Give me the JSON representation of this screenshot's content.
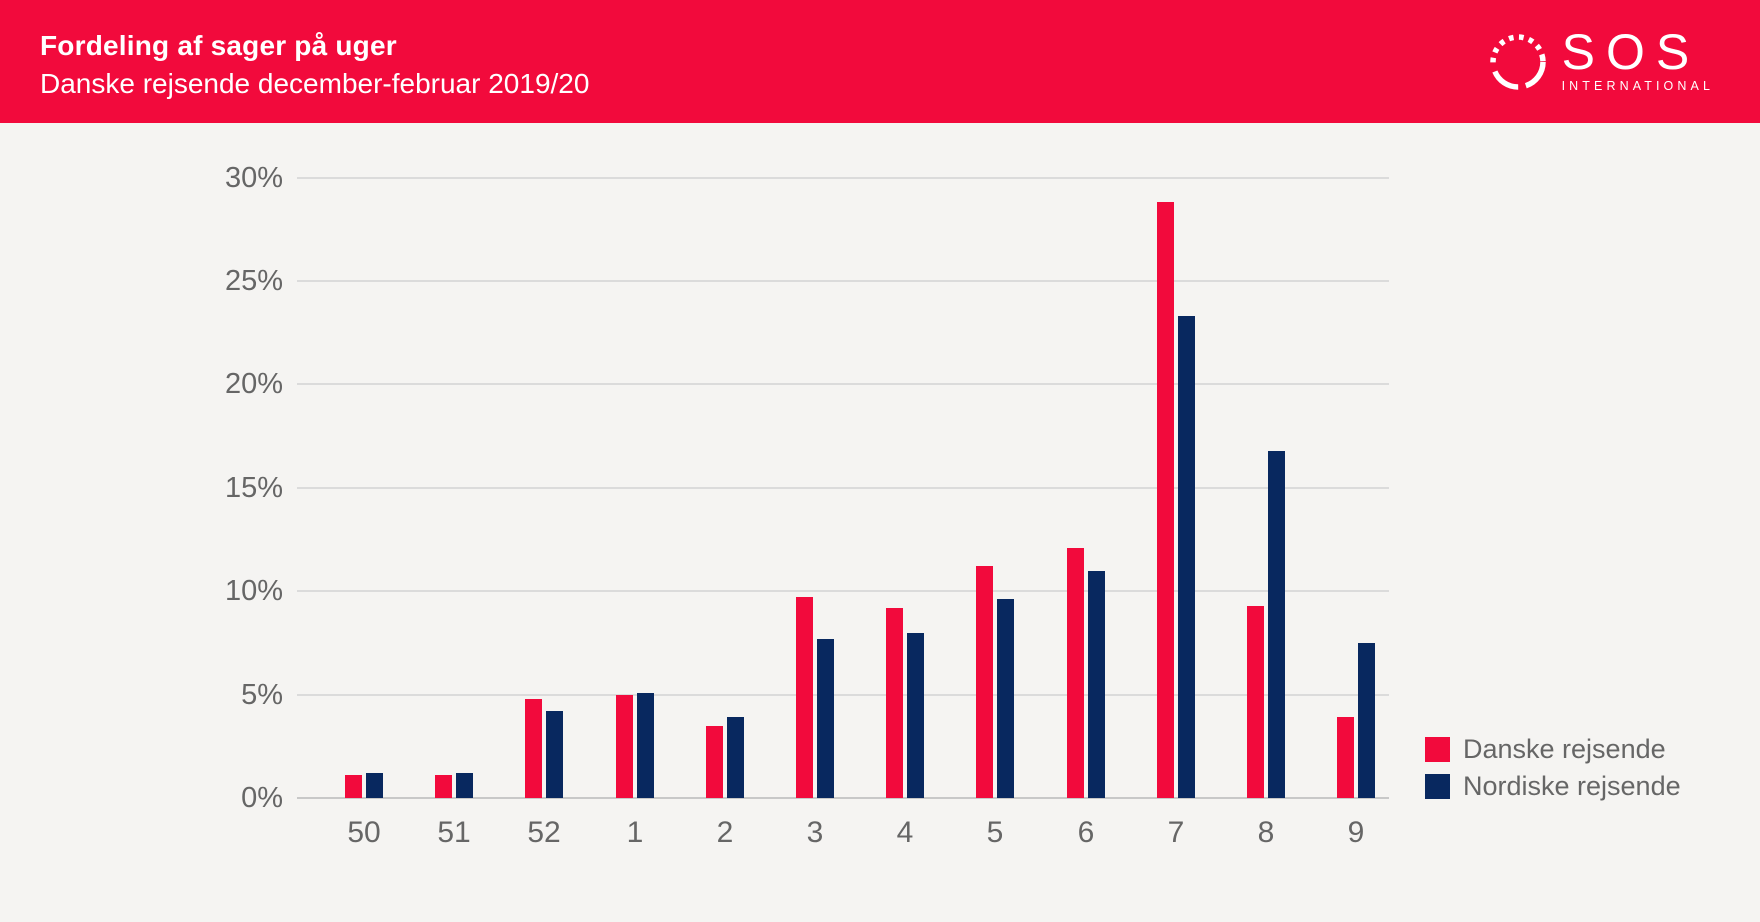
{
  "header": {
    "title": "Fordeling af sager på uger",
    "subtitle": "Danske rejsende december-februar 2019/20"
  },
  "logo": {
    "name": "SOS International",
    "text": "SOS",
    "subtext": "INTERNATIONAL"
  },
  "colors": {
    "accent_red": "#F20A3C",
    "accent_navy": "#08285F",
    "header_background": "#F20A3C",
    "page_background": "#F5F4F2",
    "gridline": "#DBDBDB",
    "axis_line": "#C8C8C8",
    "tick_text": "#666666",
    "legend_text": "#666666",
    "logo_white": "#FFFFFF"
  },
  "chart_data": {
    "type": "bar",
    "title": "Fordeling af sager på uger",
    "subtitle": "Danske rejsende december-februar 2019/20",
    "categories": [
      "50",
      "51",
      "52",
      "1",
      "2",
      "3",
      "4",
      "5",
      "6",
      "7",
      "8",
      "9"
    ],
    "series": [
      {
        "name": "Danske rejsende",
        "color": "#F20A3C",
        "values": [
          1.1,
          1.1,
          4.8,
          5.0,
          3.5,
          9.7,
          9.2,
          11.2,
          12.1,
          28.8,
          9.3,
          3.9
        ]
      },
      {
        "name": "Nordiske rejsende",
        "color": "#08285F",
        "values": [
          1.2,
          1.2,
          4.2,
          5.1,
          3.9,
          7.7,
          8.0,
          9.6,
          11.0,
          23.3,
          16.8,
          7.5
        ]
      }
    ],
    "xlabel": "",
    "ylabel": "",
    "ylim": [
      0,
      30
    ],
    "y_ticks": [
      {
        "label": "0%",
        "value": 0
      },
      {
        "label": "5%",
        "value": 5
      },
      {
        "label": "10%",
        "value": 10
      },
      {
        "label": "15%",
        "value": 15
      },
      {
        "label": "20%",
        "value": 20
      },
      {
        "label": "25%",
        "value": 25
      },
      {
        "label": "30%",
        "value": 30
      }
    ],
    "grid": true,
    "legend_position": "bottom-right"
  }
}
